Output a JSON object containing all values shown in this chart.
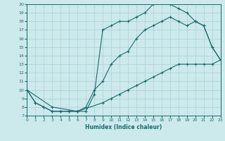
{
  "xlabel": "Humidex (Indice chaleur)",
  "xlim": [
    0,
    23
  ],
  "ylim": [
    7,
    20
  ],
  "xticks": [
    0,
    1,
    2,
    3,
    4,
    5,
    6,
    7,
    8,
    9,
    10,
    11,
    12,
    13,
    14,
    15,
    16,
    17,
    18,
    19,
    20,
    21,
    22,
    23
  ],
  "yticks": [
    7,
    8,
    9,
    10,
    11,
    12,
    13,
    14,
    15,
    16,
    17,
    18,
    19,
    20
  ],
  "bg_color": "#cce9ec",
  "grid_color": "#b0d5d8",
  "line_color": "#1a6b6b",
  "curve1_x": [
    0,
    1,
    2,
    3,
    4,
    5,
    6,
    7,
    8,
    9,
    10,
    11,
    12,
    13,
    14,
    15,
    16,
    17,
    18,
    19,
    20,
    21,
    22,
    23
  ],
  "curve1_y": [
    10,
    8.5,
    8,
    7.5,
    7.5,
    7.5,
    7.5,
    7.5,
    9.5,
    17,
    17.5,
    18,
    18,
    18.5,
    19,
    20,
    20.5,
    20,
    19.5,
    19,
    18,
    17.5,
    15,
    13.5
  ],
  "curve2_x": [
    0,
    1,
    2,
    3,
    4,
    5,
    6,
    7,
    8,
    9,
    10,
    11,
    12,
    13,
    14,
    15,
    16,
    17,
    18,
    19,
    20,
    21,
    22,
    23
  ],
  "curve2_y": [
    10,
    8.5,
    8,
    7.5,
    7.5,
    7.5,
    7.5,
    8,
    10,
    11,
    13,
    14,
    14.5,
    16,
    17,
    17.5,
    18,
    18.5,
    18,
    17.5,
    18,
    17.5,
    15,
    13.5
  ],
  "curve3_x": [
    0,
    3,
    6,
    9,
    10,
    11,
    12,
    13,
    14,
    15,
    16,
    17,
    18,
    19,
    20,
    21,
    22,
    23
  ],
  "curve3_y": [
    10,
    8,
    7.5,
    8.5,
    9,
    9.5,
    10,
    10.5,
    11,
    11.5,
    12,
    12.5,
    13,
    13,
    13,
    13,
    13,
    13.5
  ]
}
